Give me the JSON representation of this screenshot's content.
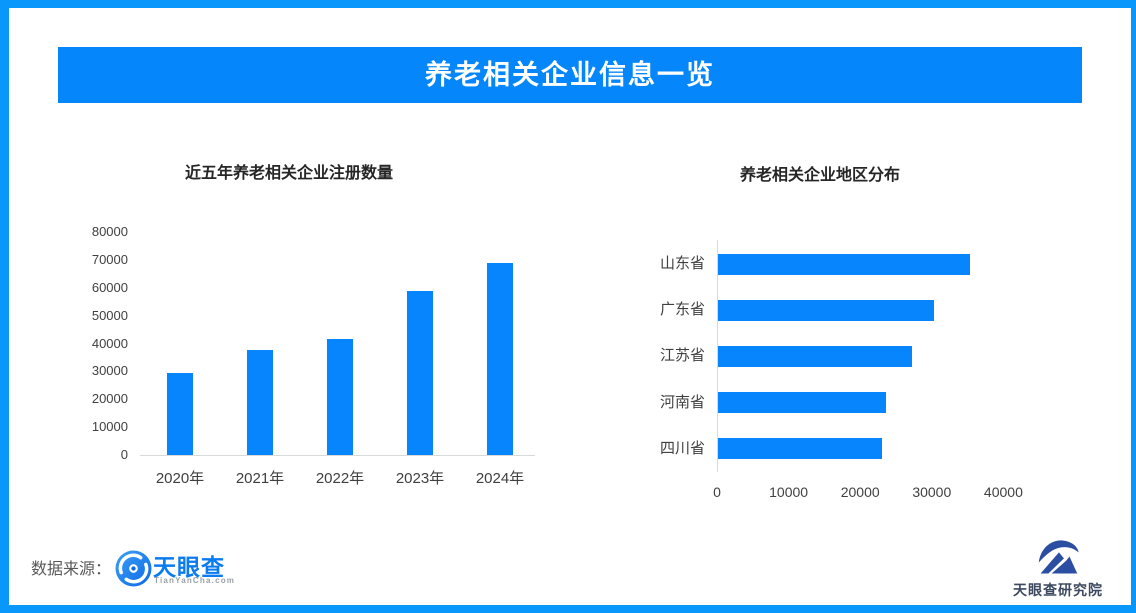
{
  "page": {
    "banner_title": "养老相关企业信息一览",
    "footer": {
      "source_label": "数据来源：",
      "logo_text": "天眼查",
      "logo_subtext": "TianYanCha.com",
      "institute_text": "天眼查研究院"
    },
    "colors": {
      "border_blue": "#0997fc",
      "banner_blue": "#0586fa",
      "bar_blue": "#0685fc",
      "logo_blue": "#0b7bf0",
      "institute_navy": "#2b4ea2"
    }
  },
  "chart_data": [
    {
      "type": "bar",
      "orientation": "vertical",
      "title": "近五年养老相关企业注册数量",
      "categories": [
        "2020年",
        "2021年",
        "2022年",
        "2023年",
        "2024年"
      ],
      "values": [
        29500,
        37700,
        41500,
        58800,
        68800
      ],
      "xlabel": "",
      "ylabel": "",
      "ylim": [
        0,
        80000
      ],
      "ytick_step": 10000,
      "grid": false,
      "legend": "none"
    },
    {
      "type": "bar",
      "orientation": "horizontal",
      "title": "养老相关企业地区分布",
      "categories": [
        "山东省",
        "广东省",
        "江苏省",
        "河南省",
        "四川省"
      ],
      "values": [
        35200,
        30200,
        27100,
        23500,
        22900
      ],
      "xlabel": "",
      "ylabel": "",
      "xlim": [
        0,
        40000
      ],
      "xtick_step": 10000,
      "grid": false,
      "legend": "none"
    }
  ]
}
